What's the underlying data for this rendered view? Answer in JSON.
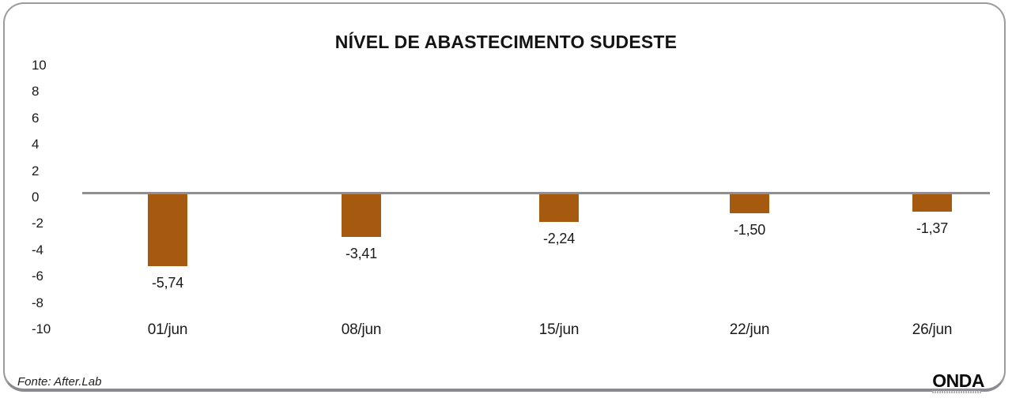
{
  "title": "NÍVEL DE ABASTECIMENTO SUDESTE",
  "chart_data": {
    "type": "bar",
    "title": "NÍVEL DE ABASTECIMENTO SUDESTE",
    "categories": [
      "01/jun",
      "08/jun",
      "15/jun",
      "22/jun",
      "26/jun"
    ],
    "values": [
      -5.74,
      -3.41,
      -2.24,
      -1.5,
      -1.37
    ],
    "value_labels": [
      "-5,74",
      "-3,41",
      "-2,24",
      "-1,50",
      "-1,37"
    ],
    "y_ticks": [
      10,
      8,
      6,
      4,
      2,
      0,
      -2,
      -4,
      -6,
      -8,
      -10
    ],
    "ylim": [
      -10,
      10
    ],
    "xlabel": "",
    "ylabel": "",
    "grid": false,
    "legend": false,
    "bar_color": "#A65A10",
    "zero_line_color": "#8e8e93"
  },
  "footer": {
    "source": "Fonte: After.Lab",
    "logo": "ONDA"
  }
}
